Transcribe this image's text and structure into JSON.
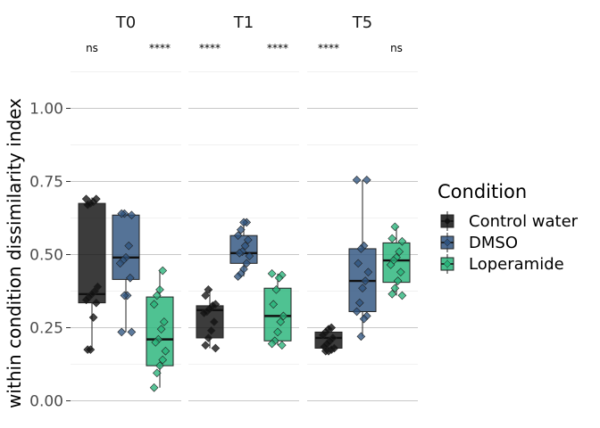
{
  "chart_data": {
    "type": "box",
    "ylabel": "within condition dissimilarity index",
    "ylim": [
      -0.05,
      1.25
    ],
    "yticks": [
      0.0,
      0.25,
      0.5,
      0.75,
      1.0
    ],
    "ytick_labels": [
      "0.00",
      "0.25",
      "0.50",
      "0.75",
      "1.00"
    ],
    "grid": true,
    "legend": {
      "title": "Condition",
      "placement": "right",
      "items": [
        {
          "name": "Control water",
          "color": "#111111"
        },
        {
          "name": "DMSO",
          "color": "#2f5480"
        },
        {
          "name": "Loperamide",
          "color": "#28b47a"
        }
      ]
    },
    "facets": [
      {
        "label": "T0",
        "signif": [
          {
            "text": "ns",
            "position": "left"
          },
          {
            "text": "****",
            "position": "right"
          }
        ],
        "boxes": [
          {
            "condition": "Control water",
            "q1": 0.335,
            "median": 0.365,
            "q3": 0.675,
            "whisker_low": 0.175,
            "whisker_high": 0.695,
            "points": [
              0.69,
              0.69,
              0.68,
              0.675,
              0.67,
              0.39,
              0.375,
              0.365,
              0.355,
              0.345,
              0.335,
              0.285,
              0.175,
              0.175
            ]
          },
          {
            "condition": "DMSO",
            "q1": 0.415,
            "median": 0.49,
            "q3": 0.635,
            "whisker_low": 0.235,
            "whisker_high": 0.64,
            "points": [
              0.64,
              0.64,
              0.635,
              0.53,
              0.49,
              0.48,
              0.47,
              0.42,
              0.36,
              0.36,
              0.235,
              0.235
            ]
          },
          {
            "condition": "Loperamide",
            "q1": 0.12,
            "median": 0.21,
            "q3": 0.355,
            "whisker_low": 0.045,
            "whisker_high": 0.445,
            "points": [
              0.445,
              0.38,
              0.36,
              0.33,
              0.27,
              0.245,
              0.21,
              0.2,
              0.17,
              0.14,
              0.12,
              0.095,
              0.045
            ]
          }
        ]
      },
      {
        "label": "T1",
        "signif": [
          {
            "text": "****",
            "position": "left"
          },
          {
            "text": "****",
            "position": "right"
          }
        ],
        "boxes": [
          {
            "condition": "Control water",
            "q1": 0.215,
            "median": 0.31,
            "q3": 0.325,
            "whisker_low": 0.18,
            "whisker_high": 0.38,
            "points": [
              0.38,
              0.36,
              0.33,
              0.325,
              0.315,
              0.305,
              0.3,
              0.27,
              0.24,
              0.215,
              0.19,
              0.18
            ]
          },
          {
            "condition": "DMSO",
            "q1": 0.47,
            "median": 0.505,
            "q3": 0.565,
            "whisker_low": 0.425,
            "whisker_high": 0.61,
            "points": [
              0.61,
              0.61,
              0.585,
              0.565,
              0.55,
              0.53,
              0.51,
              0.505,
              0.495,
              0.47,
              0.45,
              0.435,
              0.425
            ]
          },
          {
            "condition": "Loperamide",
            "q1": 0.205,
            "median": 0.29,
            "q3": 0.385,
            "whisker_low": 0.19,
            "whisker_high": 0.435,
            "points": [
              0.435,
              0.43,
              0.42,
              0.38,
              0.33,
              0.29,
              0.27,
              0.235,
              0.205,
              0.195,
              0.19
            ]
          }
        ]
      },
      {
        "label": "T5",
        "signif": [
          {
            "text": "****",
            "position": "left"
          },
          {
            "text": "ns",
            "position": "right"
          }
        ],
        "boxes": [
          {
            "condition": "Control water",
            "q1": 0.18,
            "median": 0.215,
            "q3": 0.235,
            "whisker_low": 0.17,
            "whisker_high": 0.25,
            "points": [
              0.25,
              0.245,
              0.235,
              0.225,
              0.215,
              0.205,
              0.195,
              0.185,
              0.18,
              0.175,
              0.17,
              0.17
            ]
          },
          {
            "condition": "DMSO",
            "q1": 0.305,
            "median": 0.41,
            "q3": 0.52,
            "whisker_low": 0.22,
            "whisker_high": 0.755,
            "points": [
              0.755,
              0.755,
              0.53,
              0.52,
              0.47,
              0.44,
              0.41,
              0.385,
              0.335,
              0.305,
              0.29,
              0.28,
              0.22
            ]
          },
          {
            "condition": "Loperamide",
            "q1": 0.405,
            "median": 0.48,
            "q3": 0.54,
            "whisker_low": 0.36,
            "whisker_high": 0.595,
            "points": [
              0.595,
              0.555,
              0.545,
              0.51,
              0.49,
              0.48,
              0.465,
              0.44,
              0.41,
              0.385,
              0.365,
              0.36
            ]
          }
        ]
      }
    ]
  }
}
